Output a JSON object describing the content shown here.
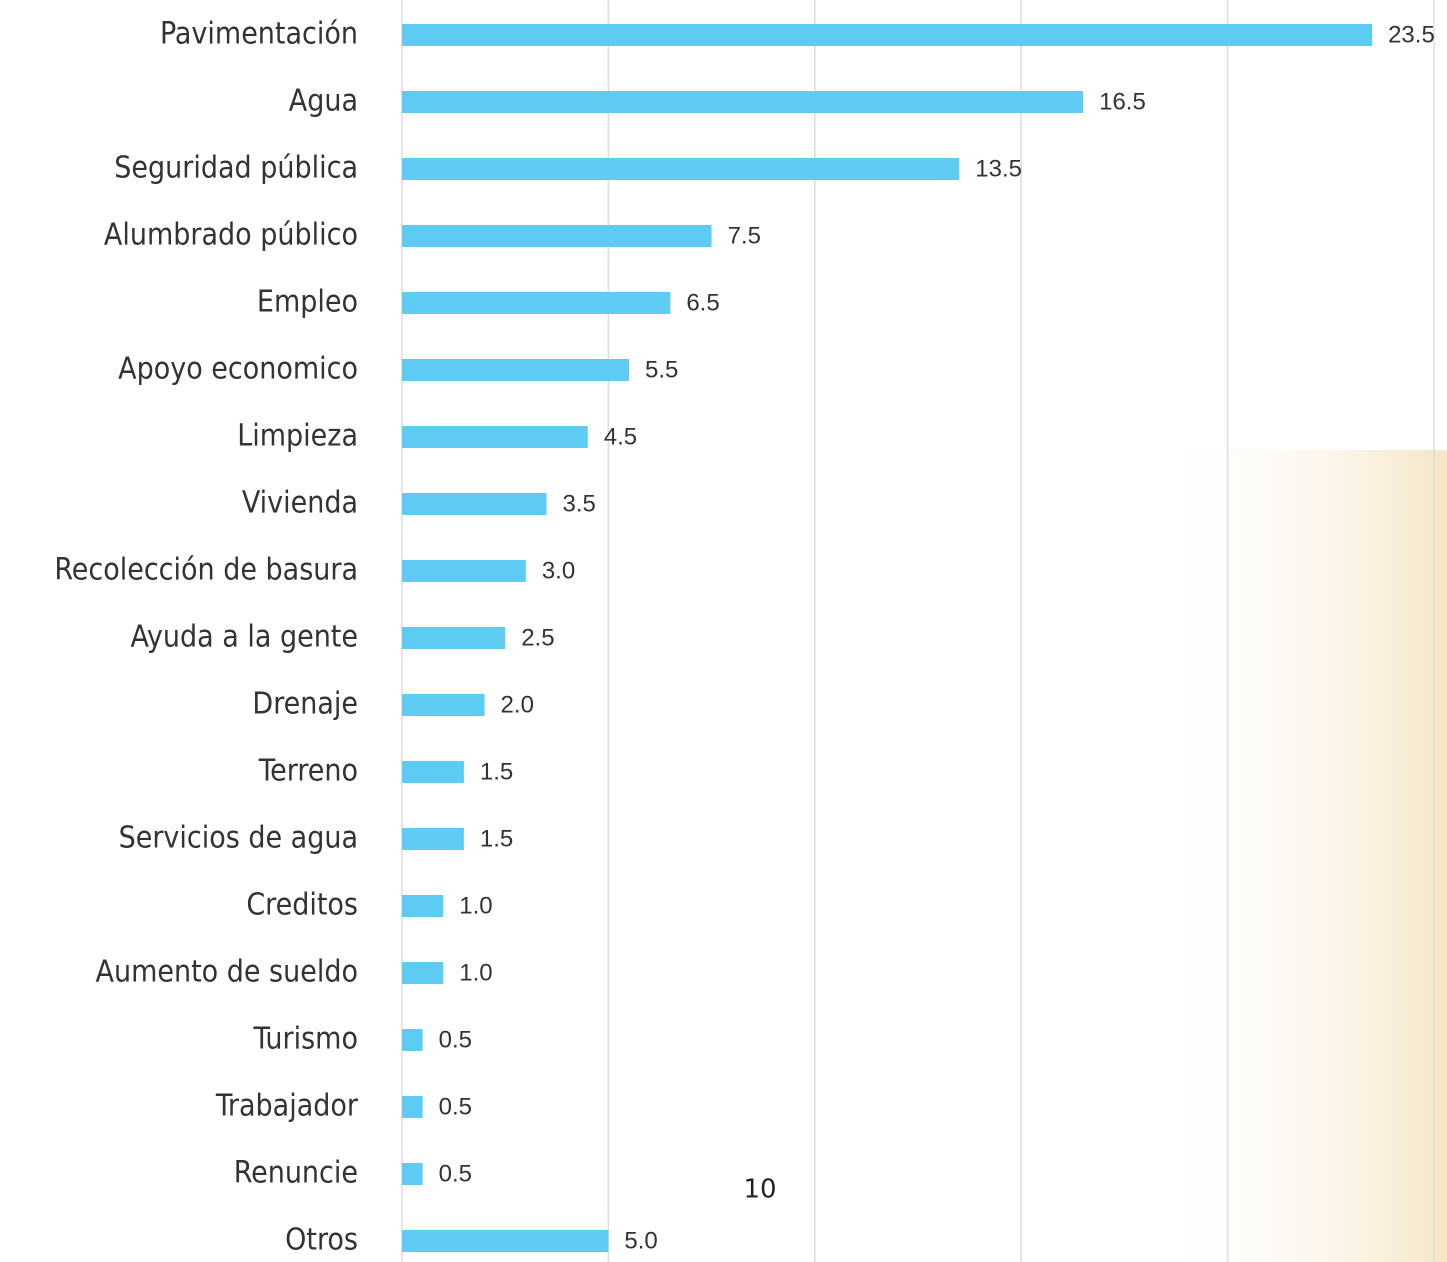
{
  "chart_data": {
    "type": "bar",
    "orientation": "horizontal",
    "categories": [
      "Pavimentación",
      "Agua",
      "Seguridad pública",
      "Alumbrado público",
      "Empleo",
      "Apoyo economico",
      "Limpieza",
      "Vivienda",
      "Recolección de basura",
      "Ayuda a la gente",
      "Drenaje",
      "Terreno",
      "Servicios de agua",
      "Creditos",
      "Aumento de sueldo",
      "Turismo",
      "Trabajador",
      "Renuncie",
      "Otros"
    ],
    "values": [
      23.5,
      16.5,
      13.5,
      7.5,
      6.5,
      5.5,
      4.5,
      3.5,
      3.0,
      2.5,
      2.0,
      1.5,
      1.5,
      1.0,
      1.0,
      0.5,
      0.5,
      0.5,
      5.0
    ],
    "value_labels": [
      "23.5",
      "16.5",
      "13.5",
      "7.5",
      "6.5",
      "5.5",
      "4.5",
      "3.5",
      "3.0",
      "2.5",
      "2.0",
      "1.5",
      "1.5",
      "1.0",
      "1.0",
      "0.5",
      "0.5",
      "0.5",
      "5.0"
    ],
    "color": "#5ecbf2",
    "xlim": [
      0,
      25
    ],
    "xticks": [
      0,
      5,
      10,
      15,
      20,
      25
    ],
    "grid": true,
    "annotation": "10"
  }
}
